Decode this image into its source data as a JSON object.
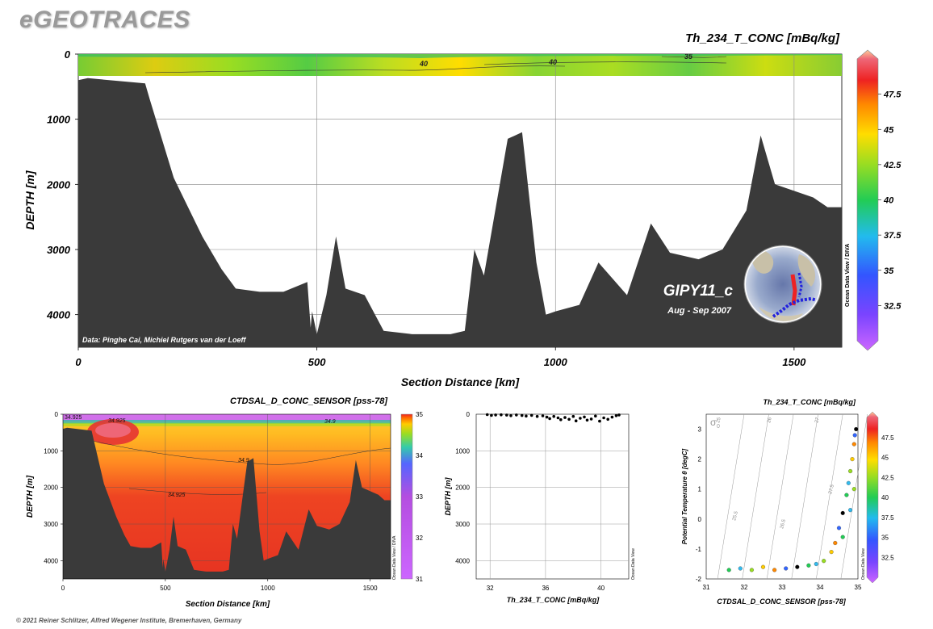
{
  "app": {
    "logo": "eGEOTRACES",
    "copyright": "© 2021 Reiner Schlitzer, Alfred Wegener Institute, Bremerhaven, Germany"
  },
  "main_section": {
    "title": "Th_234_T_CONC [mBq/kg]",
    "ylabel": "DEPTH [m]",
    "xlabel": "Section Distance [km]",
    "credit": "Data: Pinghe Cai, Michiel Rutgers van der Loeff",
    "cruise": "GIPY11_c",
    "dates": "Aug - Sep 2007",
    "odv_label": "Ocean Data View / DIVA",
    "xticks": [
      0,
      500,
      1000,
      1500
    ],
    "yticks": [
      0,
      1000,
      2000,
      3000,
      4000
    ],
    "contour_labels": [
      "40",
      "40",
      "35"
    ]
  },
  "colorbar_main": {
    "ticks": [
      "47.5",
      "45",
      "42.5",
      "40",
      "37.5",
      "35",
      "32.5"
    ]
  },
  "salinity_section": {
    "title": "CTDSAL_D_CONC_SENSOR [pss-78]",
    "ylabel": "DEPTH [m]",
    "xlabel": "Section Distance [km]",
    "odv_label": "Ocean Data View / DIVA",
    "xticks": [
      0,
      500,
      1000,
      1500
    ],
    "yticks": [
      0,
      1000,
      2000,
      3000,
      4000
    ],
    "contour_labels": [
      "34.925",
      "34.9",
      "34.9",
      "34.925",
      "34.925"
    ],
    "colorbar_ticks": [
      "35",
      "34",
      "33",
      "32",
      "31"
    ]
  },
  "profile_plot": {
    "ylabel": "DEPTH [m]",
    "xlabel": "Th_234_T_CONC [mBq/kg]",
    "odv_label": "Ocean Data View",
    "xticks": [
      32,
      36,
      40
    ],
    "yticks": [
      0,
      1000,
      2000,
      3000,
      4000
    ]
  },
  "ts_plot": {
    "title": "Th_234_T_CONC [mBq/kg]",
    "ylabel": "Potential Temperature θ [degC]",
    "xlabel": "CTDSAL_D_CONC_SENSOR [pss-78]",
    "odv_label": "Ocean Data View",
    "sigma_label": "σ",
    "sigma_sub": "0",
    "isopycnal_labels": [
      "25",
      "26",
      "27",
      "25.5",
      "26.5",
      "27.5"
    ],
    "xticks": [
      31,
      32,
      33,
      34,
      35
    ],
    "yticks": [
      3,
      2,
      1,
      0,
      -1,
      -2
    ],
    "colorbar_ticks": [
      "47.5",
      "45",
      "42.5",
      "40",
      "37.5",
      "35",
      "32.5"
    ]
  },
  "chart_data": [
    {
      "type": "heatmap",
      "title": "Th_234_T_CONC [mBq/kg]",
      "xlabel": "Section Distance [km]",
      "ylabel": "DEPTH [m]",
      "xlim": [
        0,
        1600
      ],
      "ylim": [
        4500,
        0
      ],
      "colorbar": {
        "min": 30,
        "max": 50
      },
      "bathymetry": {
        "x": [
          0,
          20,
          140,
          150,
          200,
          260,
          300,
          330,
          380,
          430,
          480,
          487,
          490,
          500,
          520,
          540,
          560,
          600,
          640,
          700,
          780,
          810,
          830,
          850,
          900,
          930,
          960,
          980,
          1000,
          1050,
          1090,
          1150,
          1200,
          1240,
          1300,
          1350,
          1400,
          1430,
          1460,
          1500,
          1540,
          1570,
          1600
        ],
        "y": [
          400,
          370,
          450,
          700,
          1900,
          2800,
          3300,
          3600,
          3650,
          3650,
          3500,
          4200,
          3950,
          4300,
          3700,
          2800,
          3600,
          3700,
          4250,
          4300,
          4300,
          4250,
          3000,
          3400,
          1300,
          1200,
          3200,
          4000,
          3950,
          3850,
          3200,
          3700,
          2600,
          3050,
          3150,
          3000,
          2400,
          1250,
          2000,
          2100,
          2200,
          2350,
          2350
        ]
      }
    },
    {
      "type": "heatmap",
      "title": "CTDSAL_D_CONC_SENSOR [pss-78]",
      "xlabel": "Section Distance [km]",
      "ylabel": "DEPTH [m]",
      "xlim": [
        0,
        1600
      ],
      "ylim": [
        4500,
        0
      ],
      "colorbar": {
        "min": 31,
        "max": 35
      }
    },
    {
      "type": "scatter",
      "xlabel": "Th_234_T_CONC [mBq/kg]",
      "ylabel": "DEPTH [m]",
      "xlim": [
        31,
        42
      ],
      "ylim": [
        4500,
        0
      ],
      "x": [
        31.8,
        32.1,
        32.4,
        32.8,
        33.2,
        33.5,
        33.9,
        34.3,
        34.6,
        35.0,
        35.4,
        35.8,
        36.1,
        36.3,
        36.6,
        36.9,
        37.1,
        37.4,
        37.7,
        38.0,
        38.2,
        38.5,
        38.8,
        39.0,
        39.3,
        39.6,
        39.9,
        40.2,
        40.5,
        40.8,
        41.1,
        41.3
      ],
      "y": [
        10,
        30,
        20,
        15,
        25,
        40,
        20,
        35,
        50,
        30,
        60,
        45,
        80,
        120,
        60,
        100,
        150,
        90,
        140,
        60,
        180,
        110,
        75,
        160,
        130,
        50,
        190,
        100,
        140,
        80,
        40,
        20
      ]
    },
    {
      "type": "scatter",
      "title": "Th_234_T_CONC [mBq/kg]",
      "xlabel": "CTDSAL_D_CONC_SENSOR [pss-78]",
      "ylabel": "Potential Temperature θ [degC]",
      "xlim": [
        31,
        35
      ],
      "ylim": [
        -2,
        3.5
      ],
      "x": [
        31.6,
        31.9,
        32.2,
        32.5,
        32.8,
        33.1,
        33.4,
        33.7,
        33.9,
        34.1,
        34.3,
        34.4,
        34.5,
        34.6,
        34.7,
        34.75,
        34.8,
        34.85,
        34.9,
        34.92,
        34.95,
        34.6,
        34.8,
        34.9
      ],
      "y": [
        -1.7,
        -1.65,
        -1.7,
        -1.6,
        -1.7,
        -1.65,
        -1.6,
        -1.55,
        -1.5,
        -1.4,
        -1.1,
        -0.8,
        -0.3,
        0.2,
        0.8,
        1.2,
        1.6,
        2.0,
        2.5,
        2.8,
        3.0,
        -0.6,
        0.3,
        1.0
      ]
    }
  ]
}
